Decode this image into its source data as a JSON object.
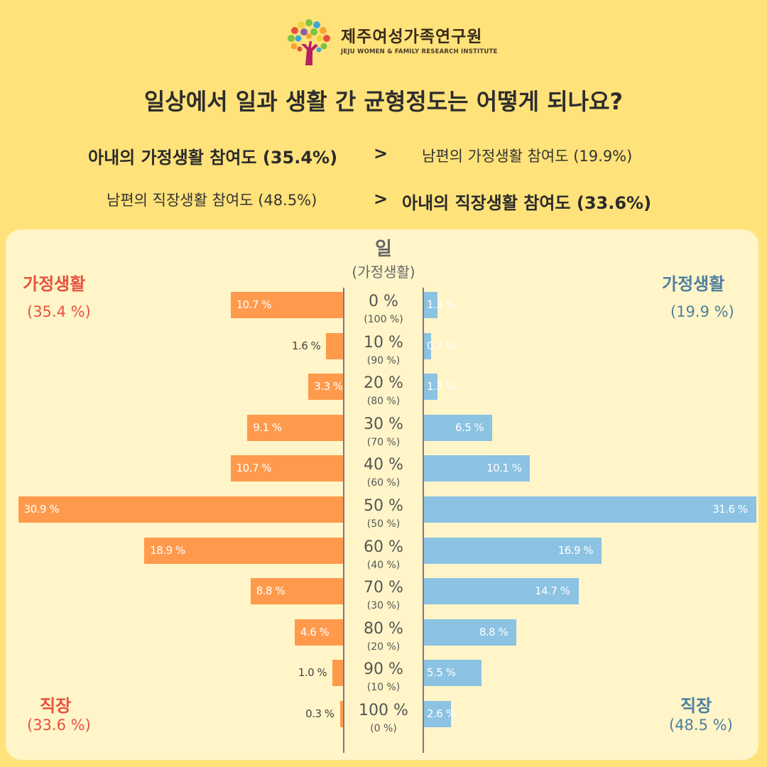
{
  "logo": {
    "name": "제주여성가족연구원",
    "subtitle": "JEJU WOMEN & FAMILY RESEARCH INSTITUTE",
    "colors": [
      "#E8513E",
      "#F7A531",
      "#F4D03F",
      "#7DC242",
      "#3FA9D5",
      "#8E5BA8",
      "#B51F64"
    ]
  },
  "title": "일상에서 일과 생활 간 균형정도는 어떻게 되나요?",
  "comparisons": [
    {
      "left": "아내의 가정생활 참여도 (35.4%)",
      "op": ">",
      "right": "남편의 가정생활 참여도 (19.9%)"
    },
    {
      "left": "남편의 직장생활 참여도 (48.5%)",
      "op": ">",
      "right": "아내의 직장생활 참여도 (33.6%)"
    }
  ],
  "chart_data": {
    "type": "bar",
    "orientation": "horizontal-diverging",
    "axis_title": "일",
    "axis_subtitle": "(가정생활)",
    "categories": [
      "0 %",
      "10 %",
      "20 %",
      "30 %",
      "40 %",
      "50 %",
      "60 %",
      "70 %",
      "80 %",
      "90 %",
      "100 %"
    ],
    "sub_categories": [
      "(100 %)",
      "(90 %)",
      "(80 %)",
      "(70 %)",
      "(60 %)",
      "(50 %)",
      "(40 %)",
      "(30 %)",
      "(20 %)",
      "(10 %)",
      "(0 %)"
    ],
    "series": [
      {
        "values": [
          10.7,
          1.6,
          3.3,
          9.1,
          10.7,
          30.9,
          18.9,
          8.8,
          4.6,
          1.0,
          0.3
        ],
        "labels": [
          "10.7 %",
          "1.6 %",
          "3.3 %",
          "9.1 %",
          "10.7 %",
          "30.9 %",
          "18.9 %",
          "8.8 %",
          "4.6 %",
          "1.0 %",
          "0.3 %"
        ],
        "color": "#FF9A4D"
      },
      {
        "values": [
          1.3,
          0.7,
          1.3,
          6.5,
          10.1,
          31.6,
          16.9,
          14.7,
          8.8,
          5.5,
          2.6
        ],
        "labels": [
          "1.3 %",
          "0.7 %",
          "1.3 %",
          "6.5 %",
          "10.1 %",
          "31.6 %",
          "16.9 %",
          "14.7 %",
          "8.8 %",
          "5.5 %",
          "2.6 %"
        ],
        "color": "#8CC2E2"
      }
    ],
    "left_labels": {
      "top": "가정생활",
      "top_pct": "(35.4 %)",
      "bottom": "직장",
      "bottom_pct": "(33.6 %)",
      "color": "#E8513E"
    },
    "right_labels": {
      "top": "가정생활",
      "top_pct": "(19.9 %)",
      "bottom": "직장",
      "bottom_pct": "(48.5 %)",
      "color": "#4E7FA0"
    }
  }
}
